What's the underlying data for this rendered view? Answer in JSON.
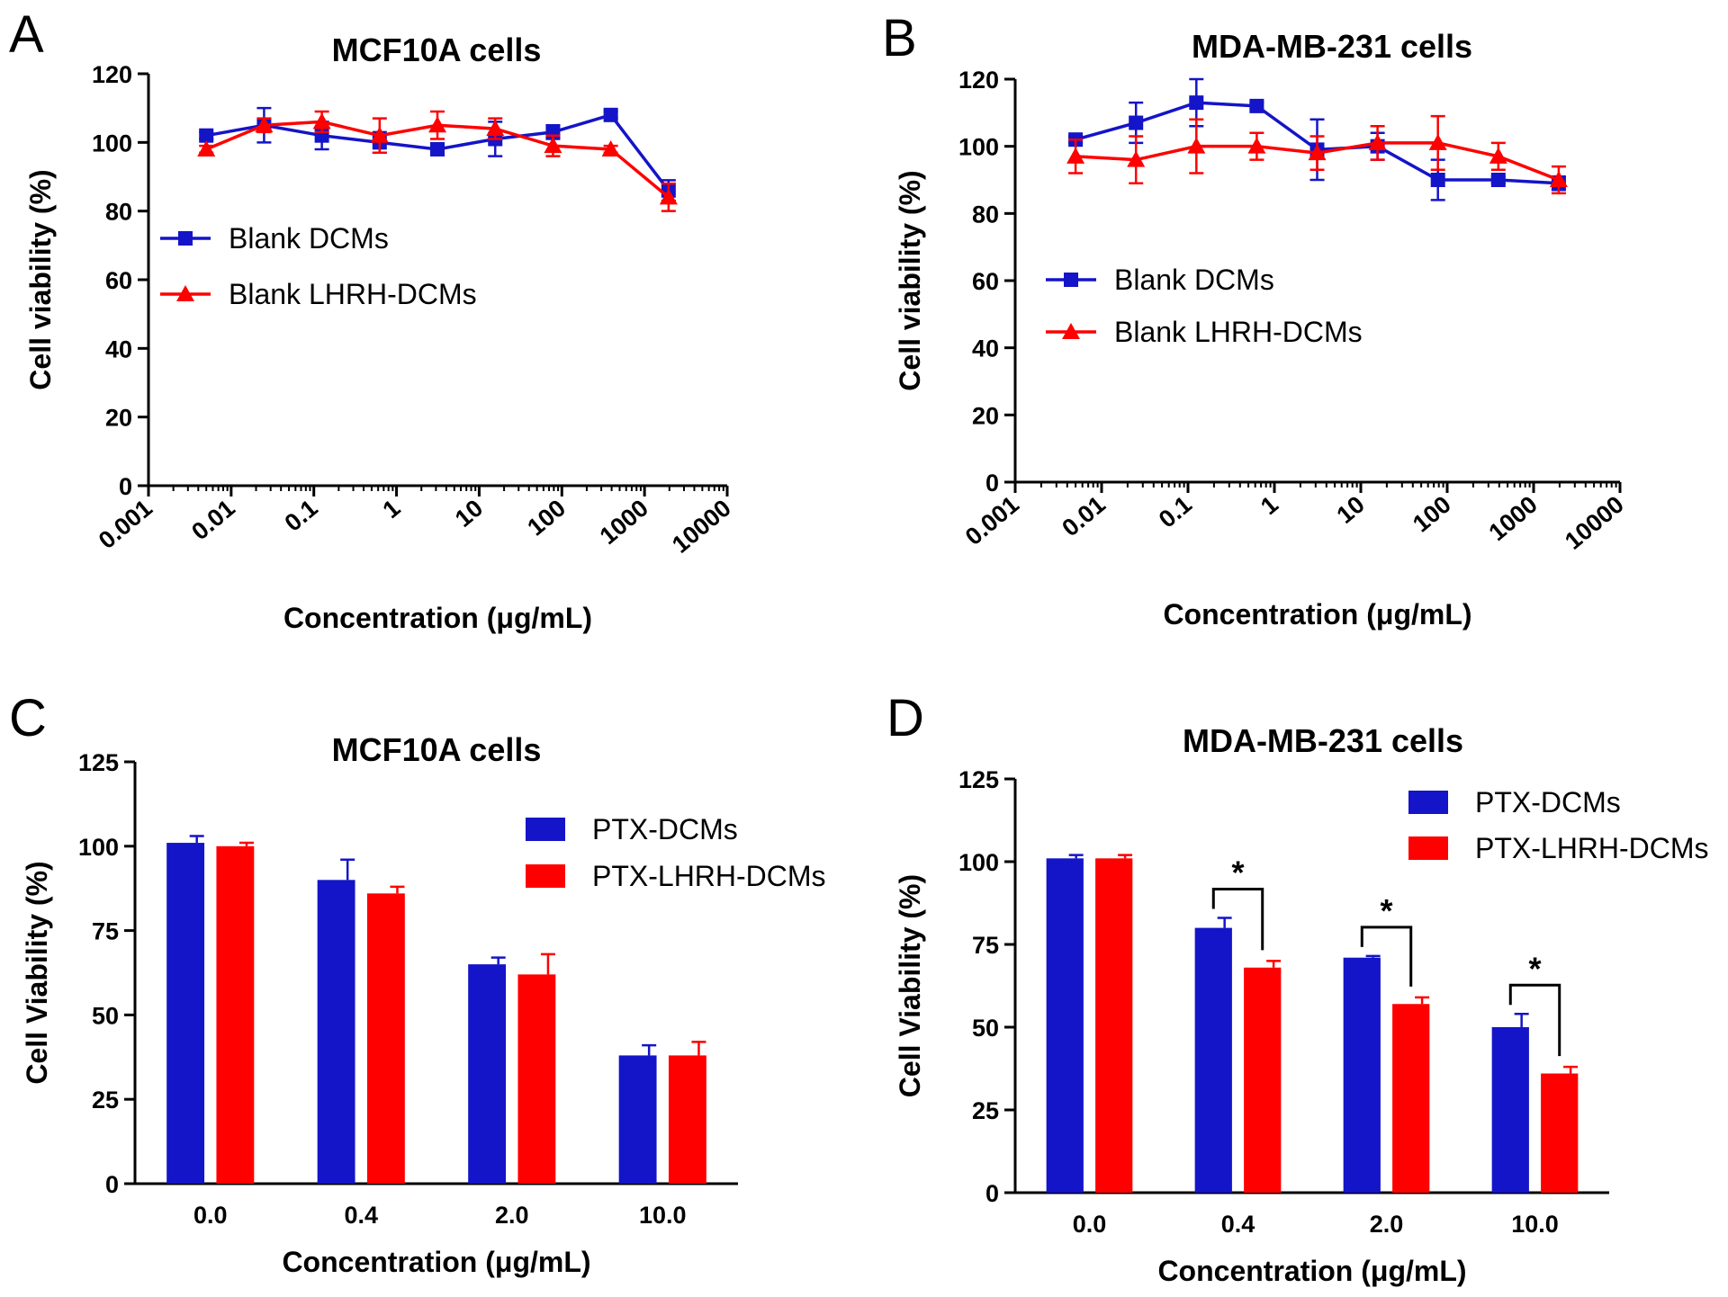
{
  "colors": {
    "blue": "#1414c8",
    "red": "#ff0000",
    "axis": "#000000"
  },
  "chart_data": [
    {
      "panel": "A",
      "type": "line",
      "title": "MCF10A cells",
      "xlabel": "Concentration (μg/mL)",
      "ylabel": "Cell viability (%)",
      "xscale": "log",
      "xlim": [
        0.001,
        10000
      ],
      "ylim": [
        0,
        120
      ],
      "x_ticks": [
        "0.001",
        "0.01",
        "0.1",
        "1",
        "10",
        "100",
        "1000",
        "10000"
      ],
      "y_ticks": [
        "0",
        "20",
        "40",
        "60",
        "80",
        "100",
        "120"
      ],
      "legend_position": "middle-left",
      "x": [
        0.005,
        0.025,
        0.125,
        0.625,
        3.125,
        15.625,
        78.125,
        390.625,
        1953.125
      ],
      "series": [
        {
          "name": "Blank DCMs",
          "color": "blue",
          "marker": "square",
          "values": [
            102,
            105,
            102,
            100,
            98,
            101,
            103,
            108,
            86
          ],
          "errors": [
            1,
            5,
            4,
            3,
            1,
            5,
            2,
            1,
            3
          ]
        },
        {
          "name": "Blank LHRH-DCMs",
          "color": "red",
          "marker": "triangle",
          "values": [
            98,
            105,
            106,
            102,
            105,
            104,
            99,
            98,
            84
          ],
          "errors": [
            1,
            2,
            3,
            5,
            4,
            3,
            3,
            1,
            4
          ]
        }
      ]
    },
    {
      "panel": "B",
      "type": "line",
      "title": "MDA-MB-231 cells",
      "xlabel": "Concentration (μg/mL)",
      "ylabel": "Cell viability (%)",
      "xscale": "log",
      "xlim": [
        0.001,
        10000
      ],
      "ylim": [
        0,
        120
      ],
      "x_ticks": [
        "0.001",
        "0.01",
        "0.1",
        "1",
        "10",
        "100",
        "1000",
        "10000"
      ],
      "y_ticks": [
        "0",
        "20",
        "40",
        "60",
        "80",
        "100",
        "120"
      ],
      "legend_position": "middle-left",
      "x": [
        0.005,
        0.025,
        0.125,
        0.625,
        3.125,
        15.625,
        78.125,
        390.625,
        1953.125
      ],
      "series": [
        {
          "name": "Blank DCMs",
          "color": "blue",
          "marker": "square",
          "values": [
            102,
            107,
            113,
            112,
            99,
            100,
            90,
            90,
            89
          ],
          "errors": [
            1,
            6,
            7,
            1,
            9,
            4,
            6,
            1,
            2
          ]
        },
        {
          "name": "Blank LHRH-DCMs",
          "color": "red",
          "marker": "triangle",
          "values": [
            97,
            96,
            100,
            100,
            98,
            101,
            101,
            97,
            90
          ],
          "errors": [
            5,
            7,
            8,
            4,
            5,
            5,
            8,
            4,
            4
          ]
        }
      ]
    },
    {
      "panel": "C",
      "type": "bar",
      "title": "MCF10A  cells",
      "xlabel": "Concentration (μg/mL)",
      "ylabel": "Cell Viability (%)",
      "ylim": [
        0,
        125
      ],
      "y_ticks": [
        "0",
        "25",
        "50",
        "75",
        "100",
        "125"
      ],
      "categories": [
        "0.0",
        "0.4",
        "2.0",
        "10.0"
      ],
      "legend_position": "top-right",
      "series": [
        {
          "name": "PTX-DCMs",
          "color": "blue",
          "values": [
            101,
            90,
            65,
            38
          ],
          "errors": [
            2,
            6,
            2,
            3
          ]
        },
        {
          "name": "PTX-LHRH-DCMs",
          "color": "red",
          "values": [
            100,
            86,
            62,
            38
          ],
          "errors": [
            1,
            2,
            6,
            4
          ]
        }
      ],
      "annotations": []
    },
    {
      "panel": "D",
      "type": "bar",
      "title": "MDA-MB-231 cells",
      "xlabel": "Concentration (μg/mL)",
      "ylabel": "Cell Viability (%)",
      "ylim": [
        0,
        125
      ],
      "y_ticks": [
        "0",
        "25",
        "50",
        "75",
        "100",
        "125"
      ],
      "categories": [
        "0.0",
        "0.4",
        "2.0",
        "10.0"
      ],
      "legend_position": "top-right",
      "series": [
        {
          "name": "PTX-DCMs",
          "color": "blue",
          "values": [
            101,
            80,
            71,
            50
          ],
          "errors": [
            1,
            3,
            0.5,
            4
          ]
        },
        {
          "name": "PTX-LHRH-DCMs",
          "color": "red",
          "values": [
            101,
            68,
            57,
            36
          ],
          "errors": [
            1,
            2,
            2,
            2
          ]
        }
      ],
      "annotations": [
        {
          "category": "0.4",
          "text": "*"
        },
        {
          "category": "2.0",
          "text": "*"
        },
        {
          "category": "10.0",
          "text": "*"
        }
      ]
    }
  ]
}
